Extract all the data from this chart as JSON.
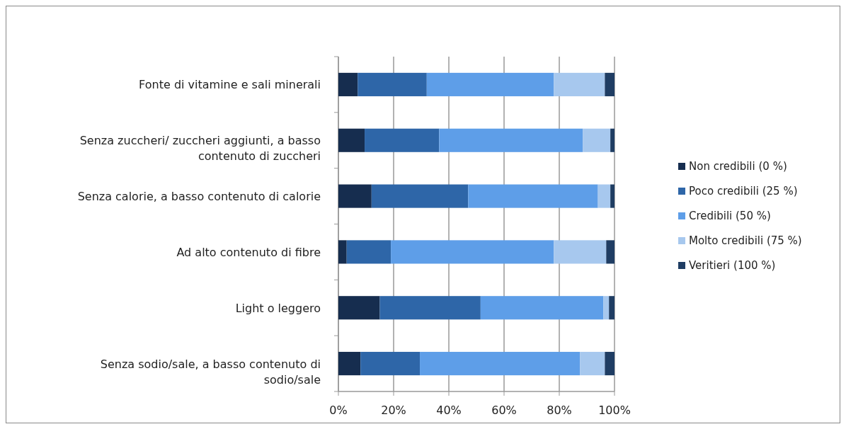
{
  "chart_data": {
    "type": "bar",
    "orientation": "horizontal",
    "stacked": true,
    "categories": [
      "Fonte di vitamine e sali minerali",
      "Senza zuccheri/ zuccheri aggiunti, a basso contenuto di zuccheri",
      "Senza calorie, a basso contenuto di calorie",
      "Ad alto contenuto di fibre",
      "Light o leggero",
      "Senza sodio/sale, a basso contenuto di sodio/sale"
    ],
    "series": [
      {
        "name": "Non credibili (0 %)",
        "color": "#162d4f",
        "values": [
          7,
          9.5,
          12,
          3,
          15,
          8
        ]
      },
      {
        "name": "Poco credibili (25 %)",
        "color": "#2e66a8",
        "values": [
          25,
          27,
          35,
          16,
          36.5,
          21.5
        ]
      },
      {
        "name": "Credibili (50 %)",
        "color": "#5e9ee8",
        "values": [
          46,
          52,
          47,
          59,
          44.5,
          58
        ]
      },
      {
        "name": "Molto credibili (75 %)",
        "color": "#a7c8ee",
        "values": [
          18.5,
          10,
          4.5,
          19,
          2,
          9
        ]
      },
      {
        "name": "Veritieri (100 %)",
        "color": "#1f3d63",
        "values": [
          3.5,
          1.5,
          1.5,
          3,
          2,
          3.5
        ]
      }
    ],
    "xlim": [
      0,
      100
    ],
    "xticks": [
      {
        "value": 0,
        "label": "0%"
      },
      {
        "value": 20,
        "label": "20%"
      },
      {
        "value": 40,
        "label": "40%"
      },
      {
        "value": 60,
        "label": "60%"
      },
      {
        "value": 80,
        "label": "80%"
      },
      {
        "value": 100,
        "label": "100%"
      }
    ],
    "grid": "x",
    "legend": "right"
  }
}
